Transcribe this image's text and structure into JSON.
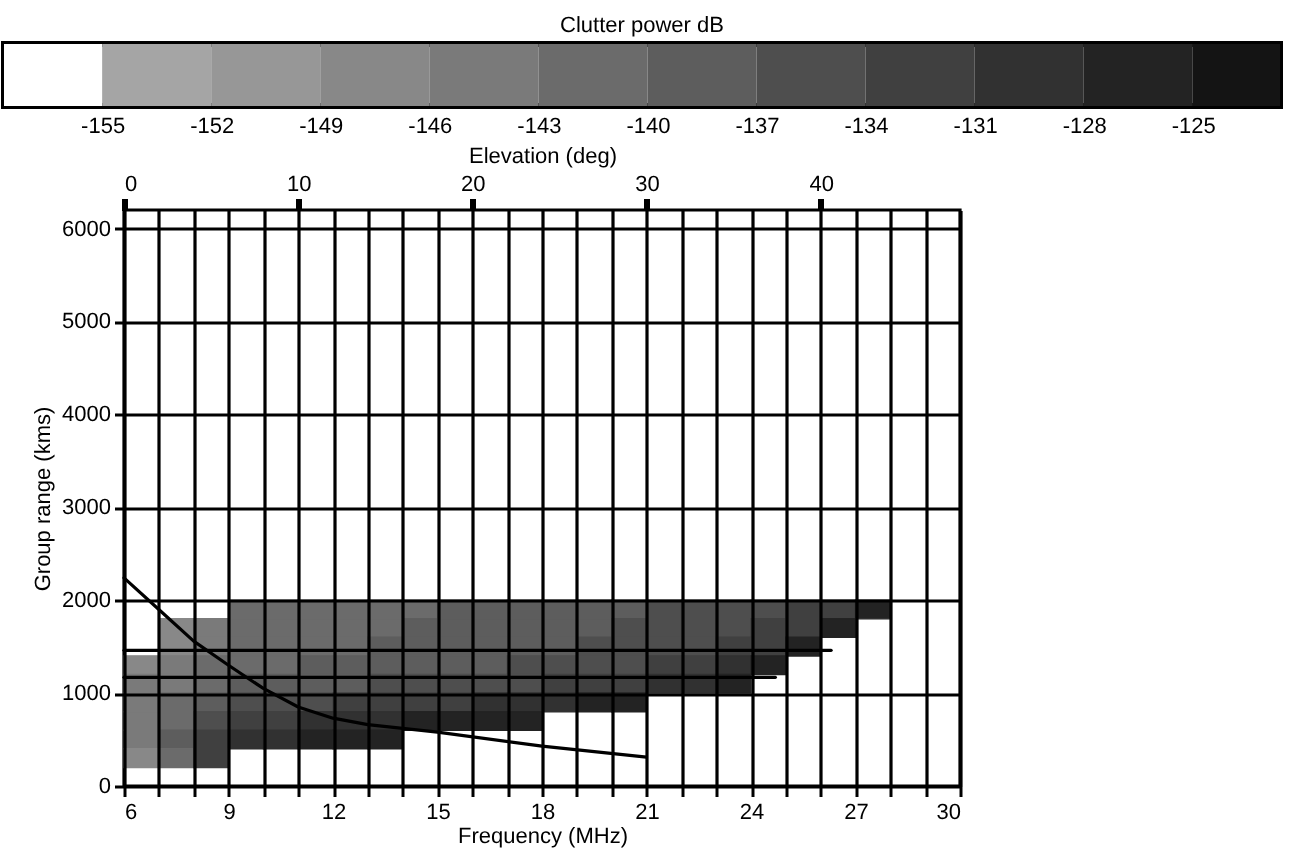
{
  "chart_data": {
    "type": "scatter",
    "xlabel": "Frequency (MHz)",
    "ylabel": "Group range (kms)",
    "x2label": "Elevation (deg)",
    "clabel": "Clutter power dB",
    "xlim": [
      6,
      30
    ],
    "xticks": [
      6,
      {
        "value": 7,
        "label": null
      },
      {
        "value": 8,
        "label": null
      },
      9,
      {
        "value": 10,
        "label": null
      },
      {
        "value": 11,
        "label": null
      },
      12,
      {
        "value": 13,
        "label": null
      },
      {
        "value": 14,
        "label": null
      },
      15,
      {
        "value": 16,
        "label": null
      },
      {
        "value": 17,
        "label": null
      },
      18,
      {
        "value": 19,
        "label": null
      },
      {
        "value": 20,
        "label": null
      },
      21,
      {
        "value": 22,
        "label": null
      },
      {
        "value": 23,
        "label": null
      },
      24,
      {
        "value": 25,
        "label": null
      },
      {
        "value": 26,
        "label": null
      },
      27,
      {
        "value": 28,
        "label": null
      },
      {
        "value": 29,
        "label": null
      },
      30
    ],
    "ylim": [
      0,
      6200
    ],
    "yticks": [
      0,
      1000,
      2000,
      3000,
      4000,
      5000,
      6000
    ],
    "x2lim": [
      0,
      48
    ],
    "x2ticks": [
      0,
      10,
      20,
      30,
      40
    ],
    "clim": [
      -157.7,
      -122.6
    ],
    "cticks": [
      -155,
      -152,
      -149,
      -146,
      -143,
      -140,
      -137,
      -134,
      -131,
      -128,
      -125
    ],
    "grid": true,
    "series": [
      {
        "marker": "square",
        "x": [
          9.5,
          10.5,
          11.5,
          12.5,
          13.5,
          14.5,
          15.5,
          16.5,
          17.5,
          18.5,
          19.5,
          20.5,
          21.5,
          22.5,
          23.5,
          24.5,
          25.5,
          26.5,
          27.5
        ],
        "colors": [
          "#6b6b6b",
          "#6b6b6b",
          "#6b6b6b",
          "#6b6b6b",
          "#6b6b6b",
          "#6b6b6b",
          "#5d5d5d",
          "#5d5d5d",
          "#5d5d5d",
          "#5d5d5d",
          "#5d5d5d",
          "#5d5d5d",
          "#4e4e4e",
          "#4e4e4e",
          "#4e4e4e",
          "#4e4e4e",
          "#404040",
          "#404040",
          "#232323"
        ],
        "values": [
          1900,
          1900,
          1900,
          1900,
          1900,
          1900,
          1900,
          1900,
          1900,
          1900,
          1900,
          1900,
          1900,
          1900,
          1900,
          1900,
          1900,
          1900,
          1900
        ],
        "cvalues": [
          -143,
          -143,
          -143,
          -143,
          -143,
          -143,
          -140,
          -140,
          -140,
          -140,
          -140,
          -140,
          -137,
          -137,
          -137,
          -137,
          -134,
          -134,
          -128
        ]
      },
      {
        "marker": "square",
        "x": [
          7.5,
          8.5,
          9.5,
          10.5,
          11.5,
          12.5,
          13.5,
          14.5,
          15.5,
          16.5,
          17.5,
          18.5,
          19.5,
          20.5,
          21.5,
          22.5,
          23.5,
          24.5,
          25.5,
          26.5
        ],
        "colors": [
          "#888888",
          "#7a7a7a",
          "#6b6b6b",
          "#6b6b6b",
          "#6b6b6b",
          "#6b6b6b",
          "#6b6b6b",
          "#5d5d5d",
          "#5d5d5d",
          "#5d5d5d",
          "#5d5d5d",
          "#5d5d5d",
          "#5d5d5d",
          "#4e4e4e",
          "#4e4e4e",
          "#4e4e4e",
          "#4e4e4e",
          "#404040",
          "#404040",
          "#232323"
        ],
        "values": [
          1700,
          1700,
          1700,
          1700,
          1700,
          1700,
          1700,
          1700,
          1700,
          1700,
          1700,
          1700,
          1700,
          1700,
          1700,
          1700,
          1700,
          1700,
          1700,
          1700
        ],
        "cvalues": [
          -149,
          -146,
          -143,
          -143,
          -143,
          -143,
          -143,
          -140,
          -140,
          -140,
          -140,
          -140,
          -140,
          -137,
          -137,
          -137,
          -137,
          -134,
          -134,
          -128
        ]
      },
      {
        "marker": "square",
        "x": [
          7.5,
          8.5,
          9.5,
          10.5,
          11.5,
          12.5,
          13.5,
          14.5,
          15.5,
          16.5,
          17.5,
          18.5,
          19.5,
          20.5,
          21.5,
          22.5,
          23.5,
          24.5,
          25.5
        ],
        "colors": [
          "#888888",
          "#7a7a7a",
          "#6b6b6b",
          "#6b6b6b",
          "#6b6b6b",
          "#6b6b6b",
          "#5d5d5d",
          "#5d5d5d",
          "#5d5d5d",
          "#5d5d5d",
          "#5d5d5d",
          "#5d5d5d",
          "#4e4e4e",
          "#4e4e4e",
          "#4e4e4e",
          "#4e4e4e",
          "#404040",
          "#404040",
          "#232323"
        ],
        "values": [
          1500,
          1500,
          1500,
          1500,
          1500,
          1500,
          1500,
          1500,
          1500,
          1500,
          1500,
          1500,
          1500,
          1500,
          1500,
          1500,
          1500,
          1500,
          1500
        ],
        "cvalues": [
          -149,
          -146,
          -143,
          -143,
          -143,
          -143,
          -140,
          -140,
          -140,
          -140,
          -140,
          -140,
          -137,
          -137,
          -137,
          -137,
          -134,
          -134,
          -128
        ]
      },
      {
        "marker": "square",
        "x": [
          6.5,
          7.5,
          8.5,
          9.5,
          10.5,
          11.5,
          12.5,
          13.5,
          14.5,
          15.5,
          16.5,
          17.5,
          18.5,
          19.5,
          20.5,
          21.5,
          22.5,
          23.5,
          24.5
        ],
        "colors": [
          "#888888",
          "#7a7a7a",
          "#6b6b6b",
          "#6b6b6b",
          "#6b6b6b",
          "#5d5d5d",
          "#5d5d5d",
          "#5d5d5d",
          "#5d5d5d",
          "#5d5d5d",
          "#5d5d5d",
          "#4e4e4e",
          "#4e4e4e",
          "#4e4e4e",
          "#4e4e4e",
          "#404040",
          "#404040",
          "#313131",
          "#232323"
        ],
        "values": [
          1300,
          1300,
          1300,
          1300,
          1300,
          1300,
          1300,
          1300,
          1300,
          1300,
          1300,
          1300,
          1300,
          1300,
          1300,
          1300,
          1300,
          1300,
          1300
        ],
        "cvalues": [
          -149,
          -146,
          -143,
          -143,
          -143,
          -140,
          -140,
          -140,
          -140,
          -140,
          -140,
          -137,
          -137,
          -137,
          -137,
          -134,
          -134,
          -131,
          -128
        ]
      },
      {
        "marker": "square",
        "x": [
          6.5,
          7.5,
          8.5,
          9.5,
          10.5,
          11.5,
          12.5,
          13.5,
          14.5,
          15.5,
          16.5,
          17.5,
          18.5,
          19.5,
          20.5,
          21.5,
          22.5,
          23.5
        ],
        "colors": [
          "#7a7a7a",
          "#7a7a7a",
          "#6b6b6b",
          "#5d5d5d",
          "#5d5d5d",
          "#5d5d5d",
          "#5d5d5d",
          "#4e4e4e",
          "#4e4e4e",
          "#4e4e4e",
          "#4e4e4e",
          "#4e4e4e",
          "#404040",
          "#404040",
          "#404040",
          "#313131",
          "#313131",
          "#232323"
        ],
        "values": [
          1100,
          1100,
          1100,
          1100,
          1100,
          1100,
          1100,
          1100,
          1100,
          1100,
          1100,
          1100,
          1100,
          1100,
          1100,
          1100,
          1100,
          1100
        ],
        "cvalues": [
          -146,
          -146,
          -143,
          -140,
          -140,
          -140,
          -140,
          -137,
          -137,
          -137,
          -137,
          -137,
          -134,
          -134,
          -134,
          -131,
          -131,
          -128
        ]
      },
      {
        "marker": "square",
        "x": [
          6.5,
          7.5,
          8.5,
          9.5,
          10.5,
          11.5,
          12.5,
          13.5,
          14.5,
          15.5,
          16.5,
          17.5,
          18.5,
          19.5,
          20.5
        ],
        "colors": [
          "#7a7a7a",
          "#6b6b6b",
          "#5d5d5d",
          "#4e4e4e",
          "#4e4e4e",
          "#4e4e4e",
          "#404040",
          "#404040",
          "#404040",
          "#404040",
          "#313131",
          "#313131",
          "#313131",
          "#232323",
          "#232323"
        ],
        "values": [
          900,
          900,
          900,
          900,
          900,
          900,
          900,
          900,
          900,
          900,
          900,
          900,
          900,
          900,
          900
        ],
        "cvalues": [
          -146,
          -143,
          -140,
          -137,
          -137,
          -137,
          -134,
          -134,
          -134,
          -134,
          -131,
          -131,
          -131,
          -128,
          -128
        ]
      },
      {
        "marker": "square",
        "x": [
          6.5,
          7.5,
          8.5,
          9.5,
          10.5,
          11.5,
          12.5,
          13.5,
          14.5,
          15.5,
          16.5,
          17.5
        ],
        "colors": [
          "#7a7a7a",
          "#6b6b6b",
          "#4e4e4e",
          "#404040",
          "#404040",
          "#313131",
          "#313131",
          "#313131",
          "#232323",
          "#232323",
          "#232323",
          "#232323"
        ],
        "values": [
          700,
          700,
          700,
          700,
          700,
          700,
          700,
          700,
          700,
          700,
          700,
          700
        ],
        "cvalues": [
          -146,
          -143,
          -137,
          -134,
          -134,
          -131,
          -131,
          -131,
          -128,
          -128,
          -128,
          -128
        ]
      },
      {
        "marker": "square",
        "x": [
          6.5,
          7.5,
          8.5,
          9.5,
          10.5,
          11.5,
          12.5,
          13.5
        ],
        "colors": [
          "#7a7a7a",
          "#5d5d5d",
          "#404040",
          "#313131",
          "#313131",
          "#232323",
          "#232323",
          "#232323"
        ],
        "values": [
          500,
          500,
          500,
          500,
          500,
          500,
          500,
          500
        ],
        "cvalues": [
          -146,
          -140,
          -134,
          -131,
          -131,
          -128,
          -128,
          -128
        ]
      },
      {
        "marker": "square",
        "x": [
          6.5,
          7.5,
          8.5
        ],
        "colors": [
          "#888888",
          "#6b6b6b",
          "#404040"
        ],
        "values": [
          300,
          300,
          300
        ],
        "cvalues": [
          -149,
          -143,
          -134
        ]
      },
      {
        "type": "line",
        "color": "#000000",
        "x": [
          6,
          7,
          8,
          9,
          10,
          11,
          12,
          13,
          15,
          18,
          21
        ],
        "values": [
          2240,
          1900,
          1560,
          1300,
          1050,
          850,
          730,
          660,
          580,
          430,
          310
        ]
      },
      {
        "type": "line",
        "color": "#000000",
        "x": [
          6,
          26.3
        ],
        "values": [
          1460,
          1460
        ]
      },
      {
        "type": "line",
        "color": "#000000",
        "x": [
          6,
          24.7
        ],
        "values": [
          1170,
          1170
        ]
      }
    ]
  }
}
